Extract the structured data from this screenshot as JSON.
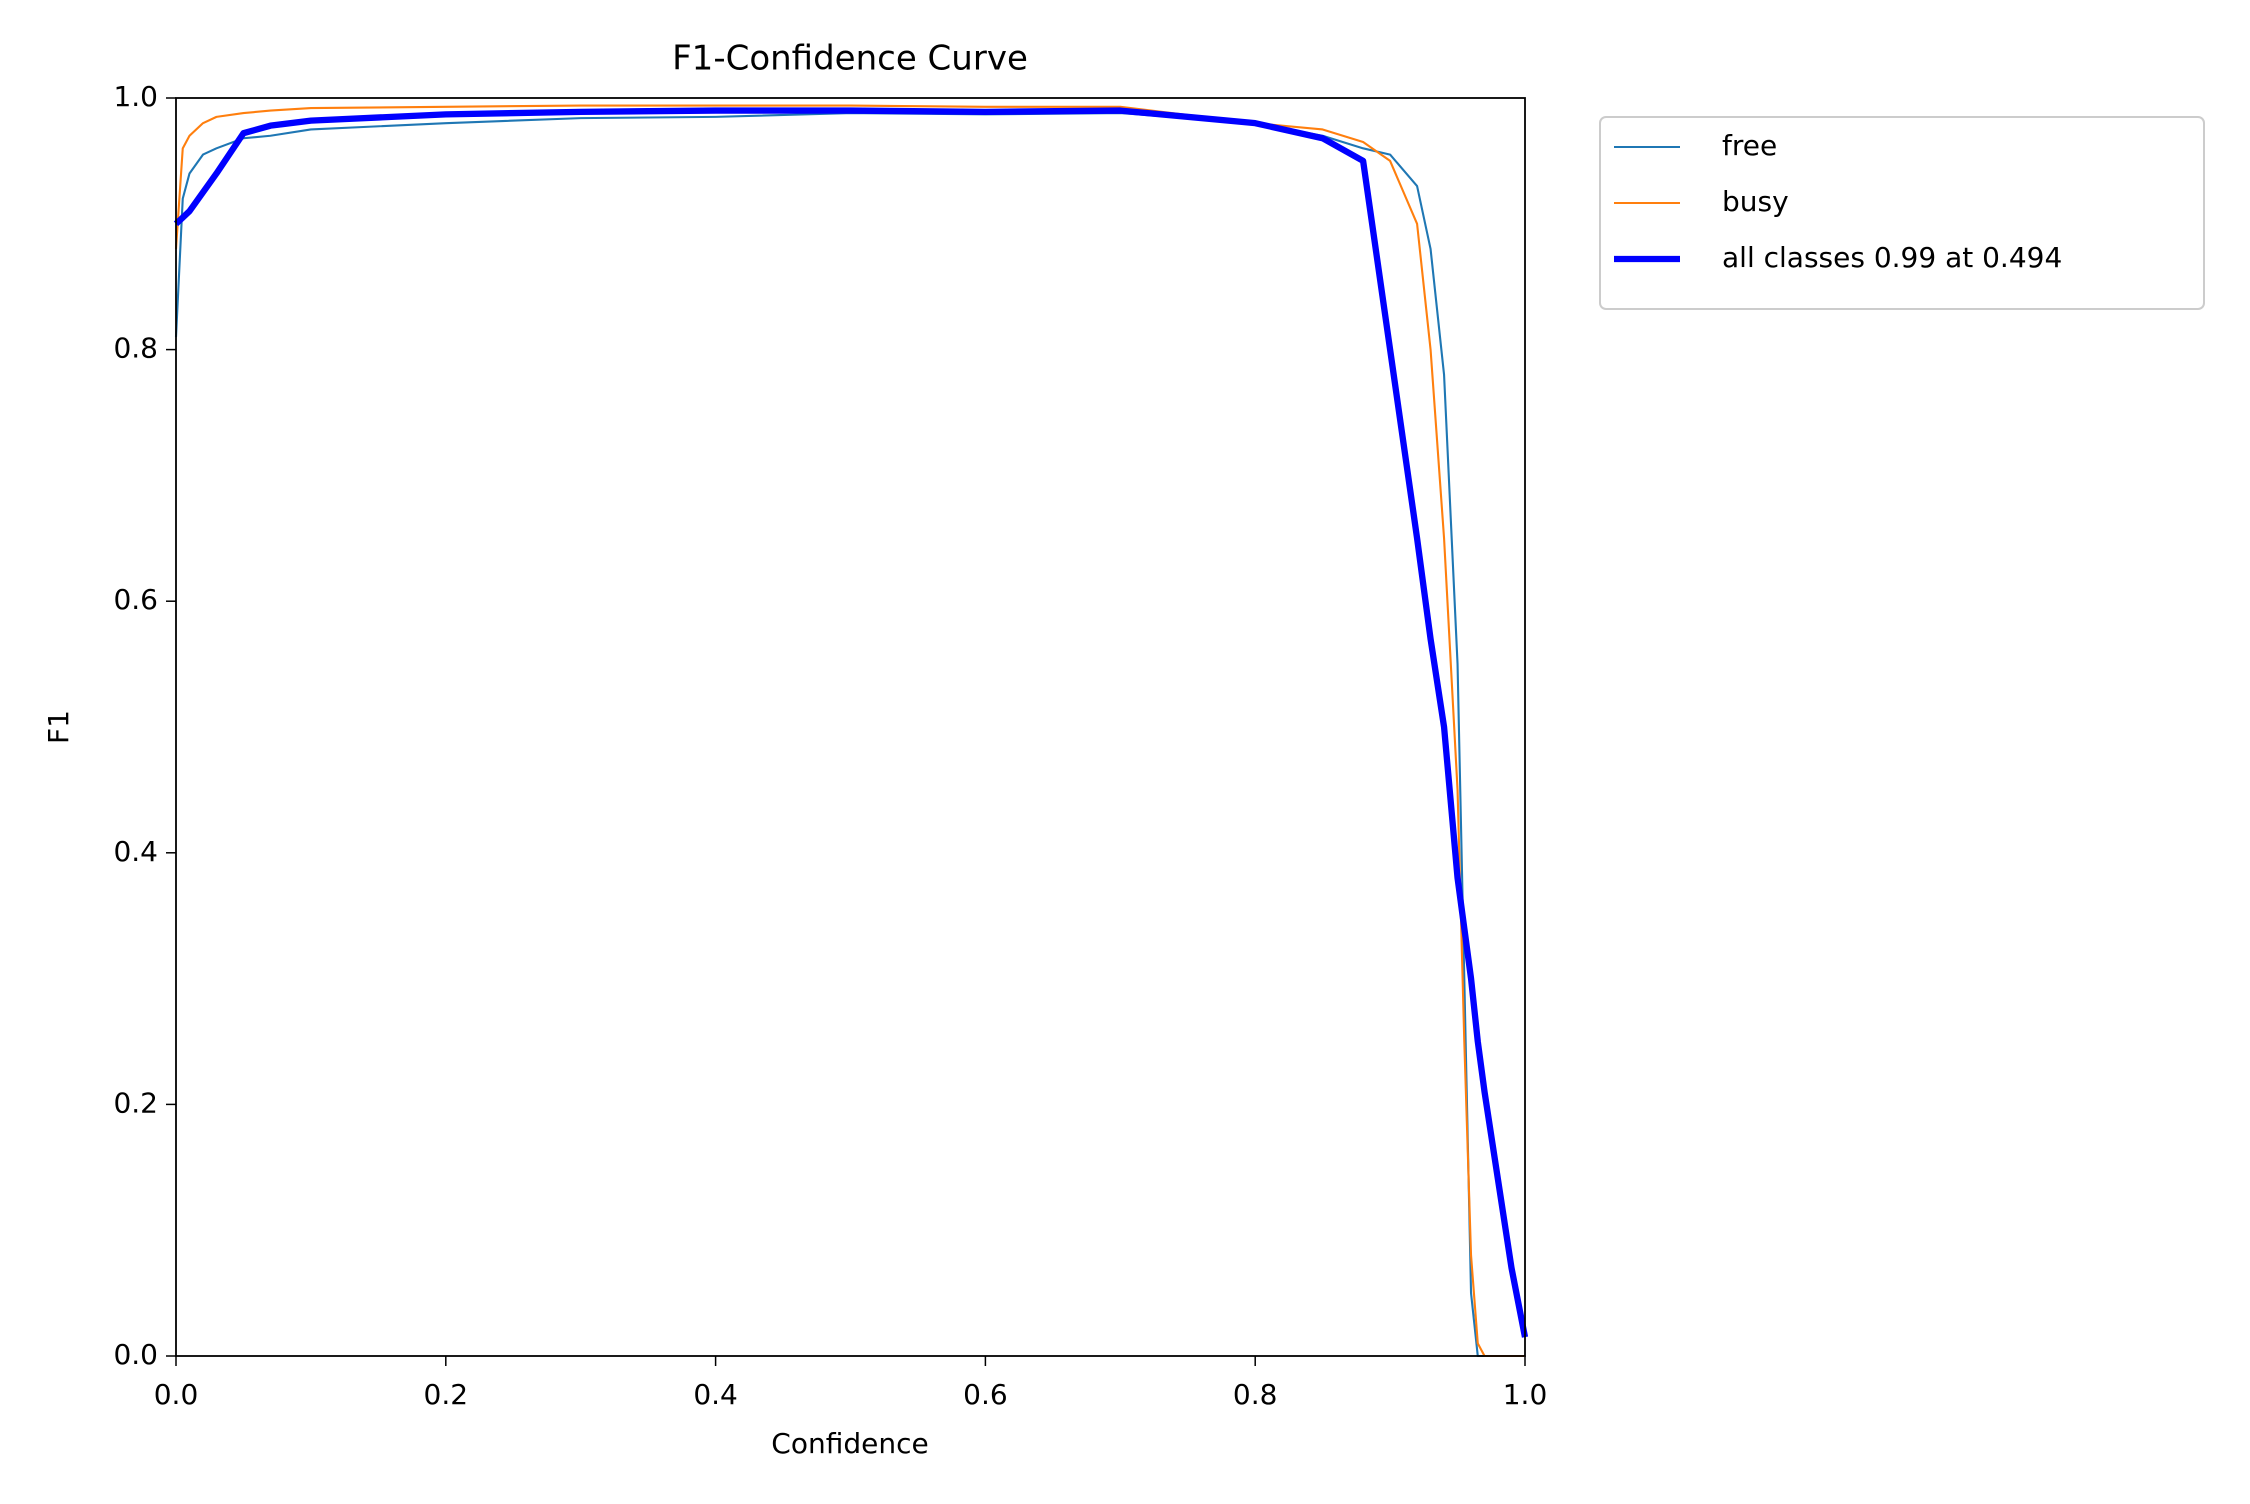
{
  "chart_data": {
    "type": "line",
    "title": "F1-Confidence Curve",
    "x_label": "Confidence",
    "y_label": "F1",
    "x": [
      0,
      0.005,
      0.01,
      0.02,
      0.03,
      0.05,
      0.07,
      0.1,
      0.2,
      0.3,
      0.4,
      0.5,
      0.6,
      0.7,
      0.8,
      0.85,
      0.88,
      0.9,
      0.92,
      0.93,
      0.94,
      0.95,
      0.955,
      0.96,
      0.965,
      0.97,
      0.98,
      0.99,
      1.0
    ],
    "series": [
      {
        "name": "free",
        "color": "#1f77b4",
        "width": 1,
        "values": [
          0.81,
          0.92,
          0.94,
          0.955,
          0.96,
          0.968,
          0.97,
          0.975,
          0.98,
          0.984,
          0.985,
          0.988,
          0.987,
          0.988,
          0.98,
          0.97,
          0.96,
          0.955,
          0.93,
          0.88,
          0.78,
          0.55,
          0.3,
          0.05,
          0,
          0,
          0,
          0,
          0
        ]
      },
      {
        "name": "busy",
        "color": "#ff7f0e",
        "width": 1,
        "values": [
          0.88,
          0.96,
          0.97,
          0.98,
          0.985,
          0.988,
          0.99,
          0.992,
          0.993,
          0.994,
          0.994,
          0.994,
          0.993,
          0.993,
          0.98,
          0.975,
          0.965,
          0.95,
          0.9,
          0.8,
          0.65,
          0.45,
          0.25,
          0.08,
          0.01,
          0,
          0,
          0,
          0
        ]
      },
      {
        "name": "all classes 0.99 at 0.494",
        "color": "#0000ff",
        "width": 3,
        "values": [
          0.9,
          0.905,
          0.91,
          0.925,
          0.94,
          0.972,
          0.978,
          0.982,
          0.987,
          0.989,
          0.99,
          0.99,
          0.989,
          0.99,
          0.98,
          0.968,
          0.95,
          0.8,
          0.65,
          0.57,
          0.5,
          0.38,
          0.34,
          0.3,
          0.25,
          0.21,
          0.14,
          0.07,
          0.015
        ]
      }
    ],
    "xlim": [
      0,
      1
    ],
    "ylim": [
      0,
      1
    ],
    "xticks": [
      {
        "value": 0,
        "label": "0.0"
      },
      0.2,
      0.4,
      0.6,
      0.8,
      {
        "value": 1,
        "label": "1.0"
      }
    ],
    "yticks": [
      {
        "value": 0,
        "label": "0.0"
      },
      0.2,
      0.4,
      0.6,
      0.8,
      {
        "value": 1,
        "label": "1.0"
      }
    ],
    "grid": false,
    "legend": "outside-upper-right"
  }
}
